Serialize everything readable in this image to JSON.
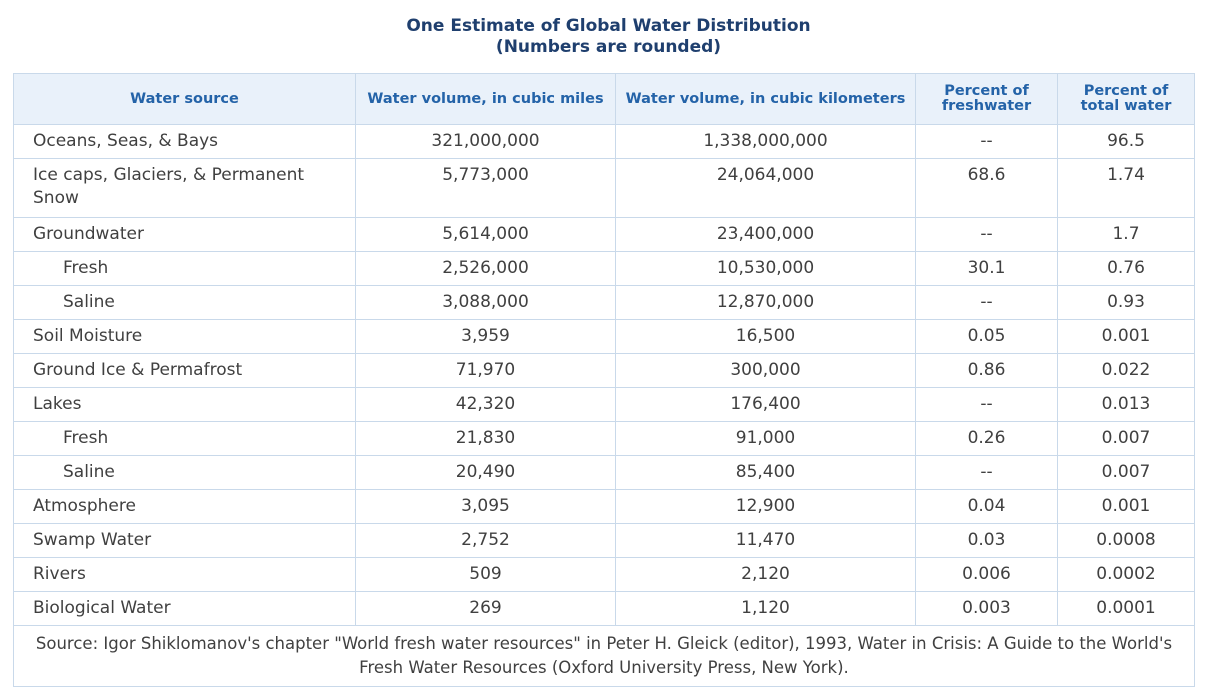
{
  "title": {
    "line1": "One Estimate of Global Water Distribution",
    "line2": "(Numbers are rounded)"
  },
  "headers": [
    "Water source",
    "Water volume, in cubic miles",
    "Water volume, in cubic kilometers",
    "Percent of freshwater",
    "Percent of total water"
  ],
  "rows": [
    {
      "source": "Oceans, Seas, & Bays",
      "miles": "321,000,000",
      "km": "1,338,000,000",
      "fresh": "--",
      "total": "96.5"
    },
    {
      "source": "Ice caps, Glaciers, & Permanent Snow",
      "miles": "5,773,000",
      "km": "24,064,000",
      "fresh": "68.6",
      "total": "1.74"
    },
    {
      "source": "Groundwater",
      "miles": "5,614,000",
      "km": "23,400,000",
      "fresh": "--",
      "total": "1.7"
    },
    {
      "source": "Fresh",
      "miles": "2,526,000",
      "km": "10,530,000",
      "fresh": "30.1",
      "total": "0.76"
    },
    {
      "source": "Saline",
      "miles": "3,088,000",
      "km": "12,870,000",
      "fresh": "--",
      "total": "0.93"
    },
    {
      "source": "Soil Moisture",
      "miles": "3,959",
      "km": "16,500",
      "fresh": "0.05",
      "total": "0.001"
    },
    {
      "source": "Ground Ice & Permafrost",
      "miles": "71,970",
      "km": "300,000",
      "fresh": "0.86",
      "total": "0.022"
    },
    {
      "source": "Lakes",
      "miles": "42,320",
      "km": "176,400",
      "fresh": "--",
      "total": "0.013"
    },
    {
      "source": "Fresh",
      "miles": "21,830",
      "km": "91,000",
      "fresh": "0.26",
      "total": "0.007"
    },
    {
      "source": "Saline",
      "miles": "20,490",
      "km": "85,400",
      "fresh": "--",
      "total": "0.007"
    },
    {
      "source": "Atmosphere",
      "miles": "3,095",
      "km": "12,900",
      "fresh": "0.04",
      "total": "0.001"
    },
    {
      "source": "Swamp Water",
      "miles": "2,752",
      "km": "11,470",
      "fresh": "0.03",
      "total": "0.0008"
    },
    {
      "source": "Rivers",
      "miles": "509",
      "km": "2,120",
      "fresh": "0.006",
      "total": "0.0002"
    },
    {
      "source": "Biological Water",
      "miles": "269",
      "km": "1,120",
      "fresh": "0.003",
      "total": "0.0001"
    }
  ],
  "source_note": "Source: Igor Shiklomanov's chapter \"World fresh water resources\" in Peter H. Gleick (editor), 1993, Water in Crisis: A Guide to the World's Fresh Water Resources (Oxford University Press, New York).",
  "colors": {
    "title": "#1f3f6e",
    "header_text": "#2463a8",
    "header_bg": "#e9f1fa",
    "border": "#c9d9ea"
  }
}
